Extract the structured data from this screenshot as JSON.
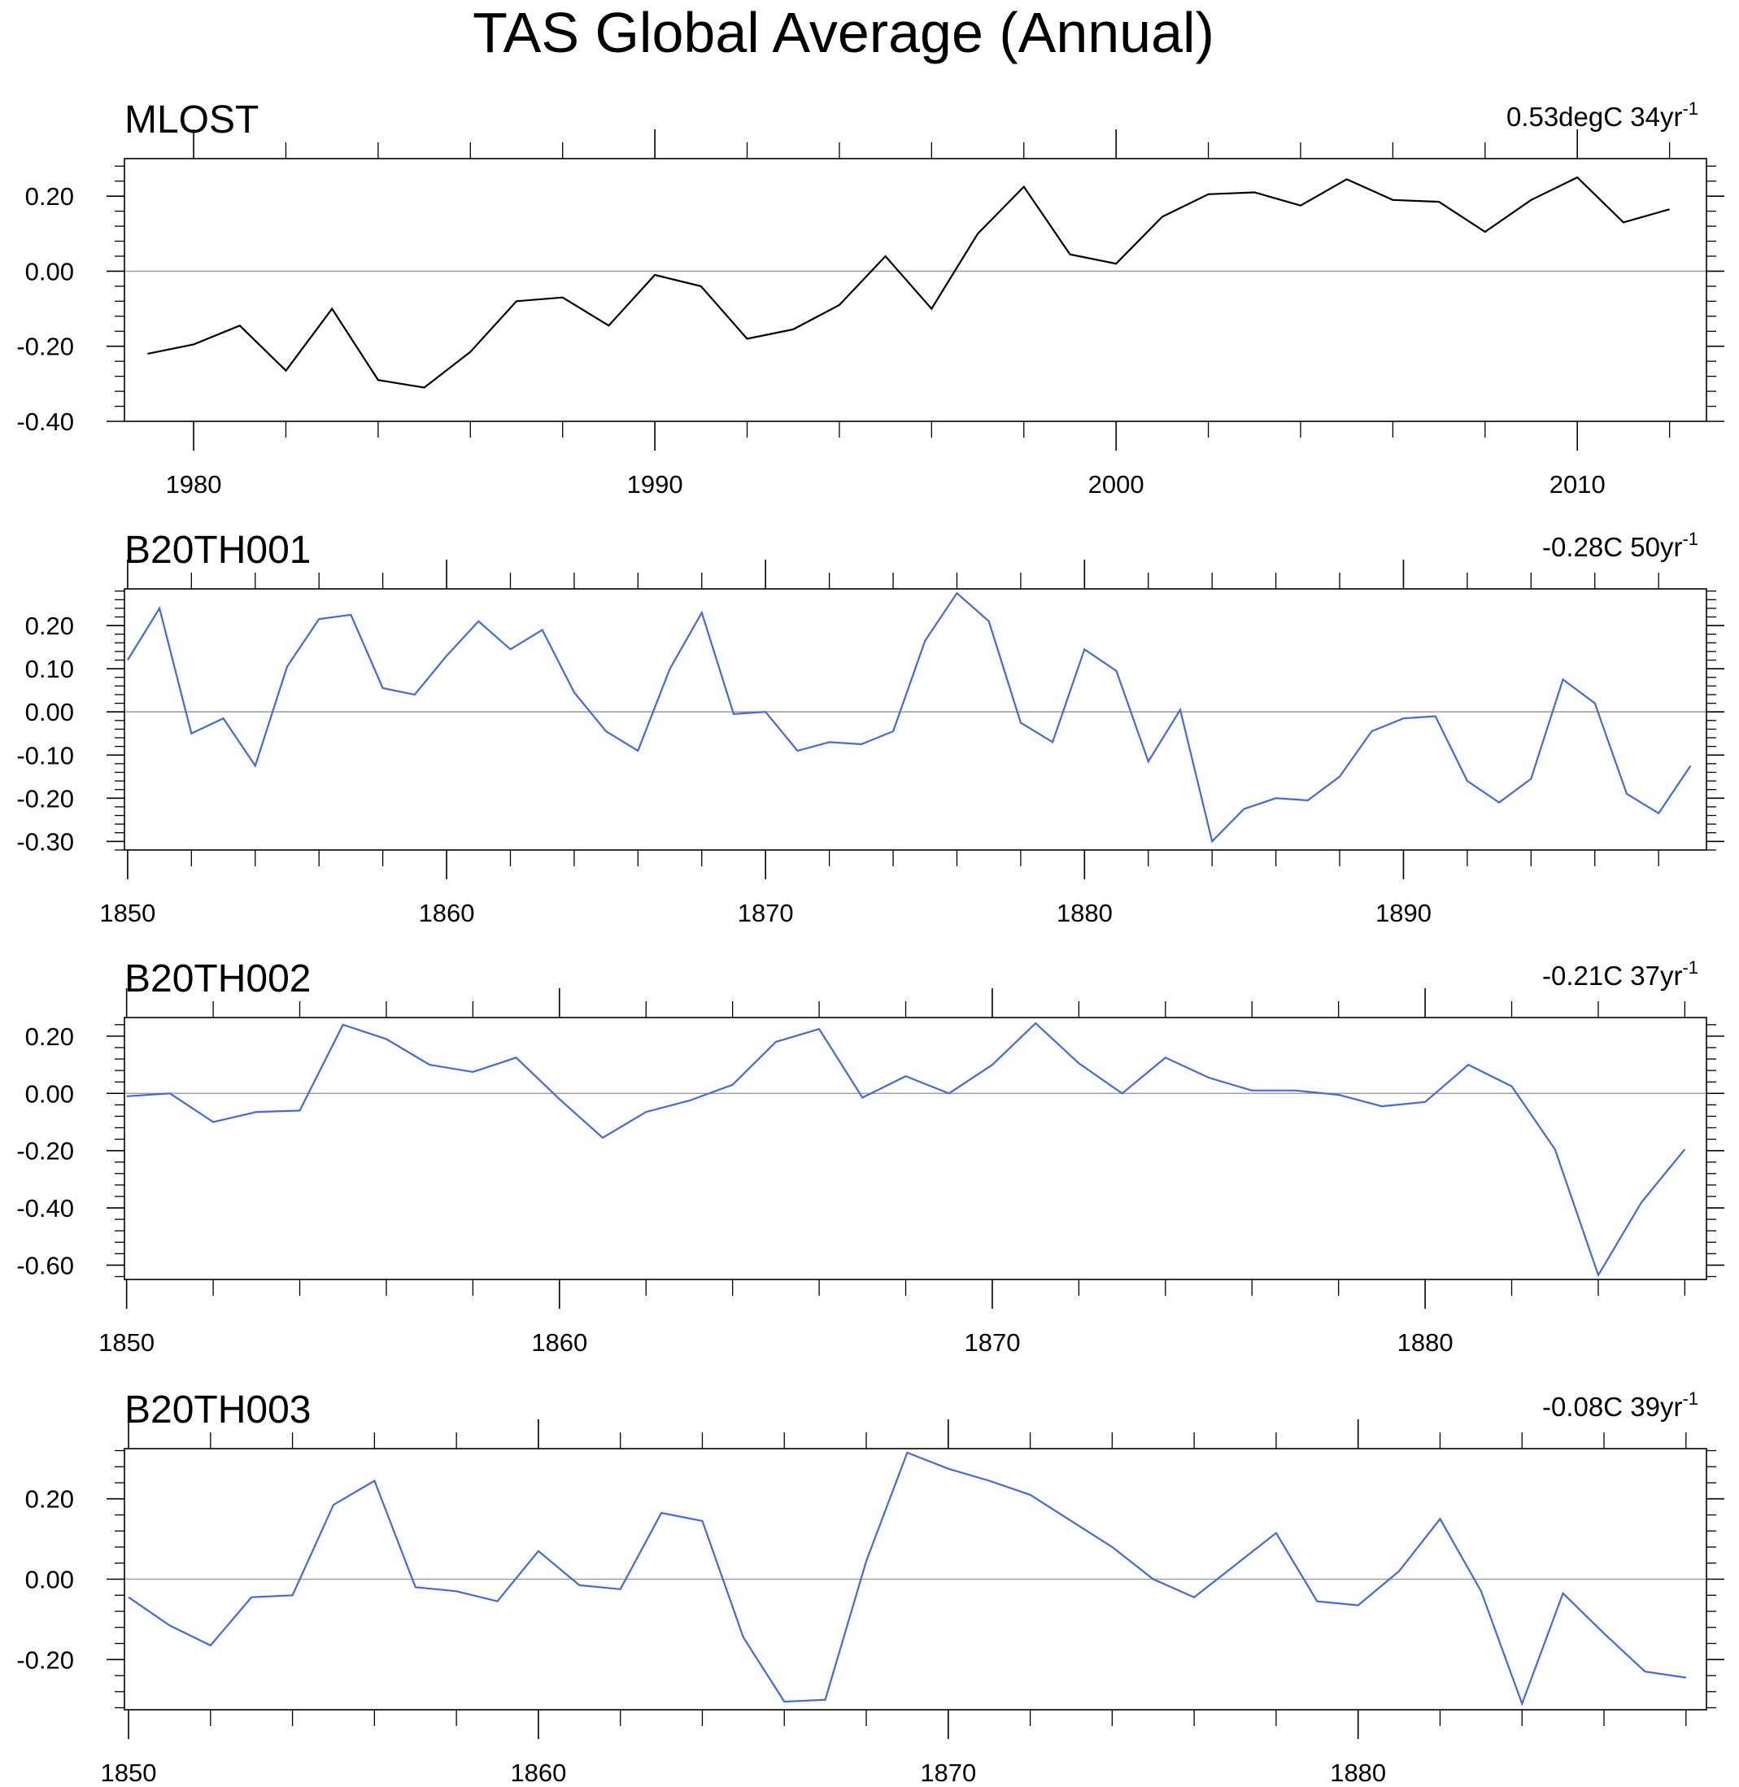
{
  "figure_title": "TAS Global Average (Annual)",
  "colors": {
    "observed_line": "#000000",
    "model_line": "#4169e1",
    "zero_line": "#a0a0a0",
    "axis": "#000000"
  },
  "chart_data": [
    {
      "type": "line",
      "title": "MLOST",
      "trend_text": "0.53degC 34yr",
      "trend_superscript": "-1",
      "color": "#000000",
      "xlim": [
        1978.5,
        2012.8
      ],
      "ylim": [
        -0.4,
        0.3
      ],
      "yticks": [
        -0.4,
        -0.2,
        0.0,
        0.2
      ],
      "ytick_labels": [
        "-0.40",
        "-0.20",
        "0.00",
        "0.20"
      ],
      "xticks": [
        1980,
        1990,
        2000,
        2010
      ],
      "xtick_labels": [
        "1980",
        "1990",
        "2000",
        "2010"
      ],
      "x_start": 1979,
      "values": [
        -0.22,
        -0.195,
        -0.145,
        -0.265,
        -0.1,
        -0.29,
        -0.31,
        -0.215,
        -0.08,
        -0.07,
        -0.145,
        -0.01,
        -0.04,
        -0.18,
        -0.155,
        -0.09,
        0.04,
        -0.1,
        0.1,
        0.225,
        0.045,
        0.02,
        0.145,
        0.205,
        0.21,
        0.175,
        0.245,
        0.19,
        0.185,
        0.105,
        0.19,
        0.25,
        0.13,
        0.165
      ]
    },
    {
      "type": "line",
      "title": "B20TH001",
      "trend_text": "-0.28C 50yr",
      "trend_superscript": "-1",
      "color": "#4169e1",
      "xlim": [
        1849.9,
        1899.5
      ],
      "ylim": [
        -0.32,
        0.285
      ],
      "yticks": [
        -0.3,
        -0.2,
        -0.1,
        0.0,
        0.1,
        0.2
      ],
      "ytick_labels": [
        "-0.30",
        "-0.20",
        "-0.10",
        "0.00",
        "0.10",
        "0.20"
      ],
      "xticks": [
        1850,
        1860,
        1870,
        1880,
        1890
      ],
      "xtick_labels": [
        "1850",
        "1860",
        "1870",
        "1880",
        "1890"
      ],
      "x_start": 1850,
      "values": [
        0.12,
        0.24,
        -0.05,
        -0.015,
        -0.125,
        0.105,
        0.215,
        0.225,
        0.055,
        0.04,
        0.13,
        0.21,
        0.145,
        0.19,
        0.045,
        -0.045,
        -0.09,
        0.1,
        0.23,
        -0.005,
        0.0,
        -0.09,
        -0.07,
        -0.075,
        -0.045,
        0.165,
        0.275,
        0.21,
        -0.025,
        -0.07,
        0.145,
        0.095,
        -0.115,
        0.005,
        -0.3,
        -0.225,
        -0.2,
        -0.205,
        -0.15,
        -0.045,
        -0.015,
        -0.01,
        -0.16,
        -0.21,
        -0.155,
        0.075,
        0.02,
        -0.19,
        -0.235,
        -0.125
      ]
    },
    {
      "type": "line",
      "title": "B20TH002",
      "trend_text": "-0.21C 37yr",
      "trend_superscript": "-1",
      "color": "#4169e1",
      "xlim": [
        1849.95,
        1886.5
      ],
      "ylim": [
        -0.65,
        0.265
      ],
      "yticks": [
        -0.6,
        -0.4,
        -0.2,
        0.0,
        0.2
      ],
      "ytick_labels": [
        "-0.60",
        "-0.40",
        "-0.20",
        "0.00",
        "0.20"
      ],
      "xticks": [
        1850,
        1860,
        1870,
        1880
      ],
      "xtick_labels": [
        "1850",
        "1860",
        "1870",
        "1880"
      ],
      "x_start": 1850,
      "values": [
        -0.01,
        0.0,
        -0.1,
        -0.065,
        -0.06,
        0.24,
        0.19,
        0.1,
        0.075,
        0.125,
        -0.02,
        -0.155,
        -0.065,
        -0.025,
        0.03,
        0.18,
        0.225,
        -0.015,
        0.06,
        0.0,
        0.1,
        0.245,
        0.105,
        0.0,
        0.125,
        0.055,
        0.01,
        0.01,
        -0.005,
        -0.045,
        -0.03,
        0.1,
        0.025,
        -0.195,
        -0.635,
        -0.38,
        -0.195
      ]
    },
    {
      "type": "line",
      "title": "B20TH003",
      "trend_text": "-0.08C 39yr",
      "trend_superscript": "-1",
      "color": "#4169e1",
      "xlim": [
        1849.9,
        1888.5
      ],
      "ylim": [
        -0.325,
        0.325
      ],
      "yticks": [
        -0.2,
        0.0,
        0.2
      ],
      "ytick_labels": [
        "-0.20",
        "0.00",
        "0.20"
      ],
      "xticks": [
        1850,
        1860,
        1870,
        1880
      ],
      "xtick_labels": [
        "1850",
        "1860",
        "1870",
        "1880"
      ],
      "x_start": 1850,
      "values": [
        -0.045,
        -0.115,
        -0.165,
        -0.045,
        -0.04,
        0.185,
        0.245,
        -0.02,
        -0.03,
        -0.055,
        0.07,
        -0.015,
        -0.025,
        0.165,
        0.145,
        -0.145,
        -0.305,
        -0.3,
        0.045,
        0.315,
        0.275,
        0.245,
        0.21,
        0.145,
        0.08,
        0.0,
        -0.045,
        0.035,
        0.115,
        -0.055,
        -0.065,
        0.02,
        0.15,
        -0.03,
        -0.31,
        -0.035,
        -0.135,
        -0.23,
        -0.245
      ]
    }
  ]
}
